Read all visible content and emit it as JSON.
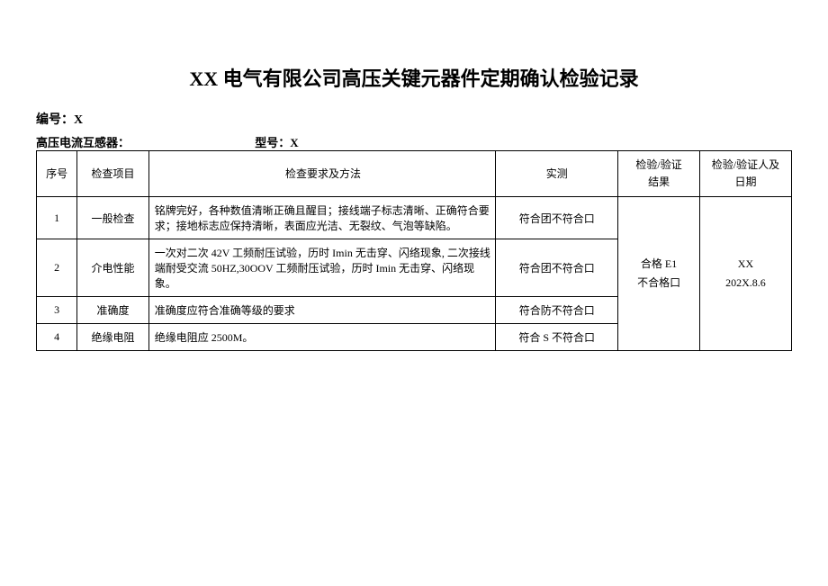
{
  "title": "XX 电气有限公司高压关键元器件定期确认检验记录",
  "meta": {
    "doc_no_label": "编号：",
    "doc_no_value": "X",
    "device_label": "高压电流互感器：",
    "model_label": "型号：",
    "model_value": "X"
  },
  "headers": {
    "seq": "序号",
    "item": "检查项目",
    "req": "检查要求及方法",
    "meas": "实测",
    "result_line1": "检验/验证",
    "result_line2": "结果",
    "sign_line1": "检验/验证人及",
    "sign_line2": "日期"
  },
  "rows": [
    {
      "seq": "1",
      "item": "一般检查",
      "req": "铭牌完好，各种数值清晰正确且醒目；接线端子标志清晰、正确符合要求；接地标志应保持清晰，表面应光洁、无裂纹、气泡等缺陷。",
      "meas": "符合团不符合口"
    },
    {
      "seq": "2",
      "item": "介电性能",
      "req": "一次对二次 42V 工频耐压试验，历时 Imin 无击穿、闪络现象, 二次接线端耐受交流 50HZ,30OOV 工频耐压试验，历时 Imin 无击穿、闪络现象。",
      "meas": "符合团不符合口"
    },
    {
      "seq": "3",
      "item": "准确度",
      "req": "准确度应符合准确等级的要求",
      "meas": "符合防不符合口"
    },
    {
      "seq": "4",
      "item": "绝缘电阻",
      "req": "绝缘电阻应 2500M。",
      "meas": "符合 S 不符合口"
    }
  ],
  "result": {
    "pass": "合格 E1",
    "fail": "不合格口"
  },
  "sign": {
    "name": "XX",
    "date": "202X.8.6"
  }
}
